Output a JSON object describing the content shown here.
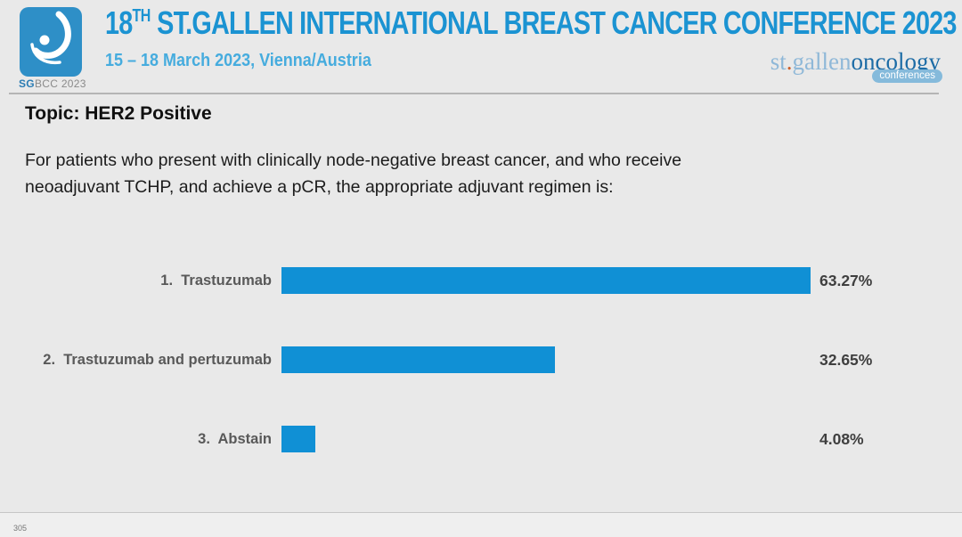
{
  "header": {
    "logo": {
      "caption_strong": "SG",
      "caption_rest": "BCC 2023",
      "square_color": "#2e8fc7"
    },
    "title_number": "18",
    "title_sup": "TH",
    "title_rest": " ST.GALLEN INTERNATIONAL BREAST CANCER CONFERENCE 2023",
    "title_color": "#1b93d2",
    "subtitle": "15 – 18 March 2023, Vienna/Austria",
    "subtitle_color": "#46acde",
    "org_logo": {
      "part_st": "st",
      "part_dot": ".",
      "part_gallen": "gallen",
      "part_oncology": "oncology",
      "part_conferences": "conferences"
    }
  },
  "main": {
    "topic": "Topic: HER2 Positive",
    "question": "For patients who present with clinically node-negative breast cancer, and who receive\nneoadjuvant TCHP, and achieve a pCR, the appropriate adjuvant regimen is:"
  },
  "chart_data": {
    "type": "bar",
    "orientation": "horizontal",
    "title": "",
    "xlabel": "",
    "ylabel": "",
    "xlim": [
      0,
      100
    ],
    "grid": false,
    "legend": "none",
    "bar_color": "#1090d5",
    "categories": [
      "1.  Trastuzumab",
      "2.  Trastuzumab and pertuzumab",
      "3.  Abstain"
    ],
    "values": [
      63.27,
      32.65,
      4.08
    ],
    "value_labels": [
      "63.27%",
      "32.65%",
      "4.08%"
    ],
    "rows": [
      {
        "label": "1.  Trastuzumab",
        "value": 63.27,
        "value_label": "63.27%"
      },
      {
        "label": "2.  Trastuzumab and pertuzumab",
        "value": 32.65,
        "value_label": "32.65%"
      },
      {
        "label": "3.  Abstain",
        "value": 4.08,
        "value_label": "4.08%"
      }
    ]
  },
  "footer": {
    "page_number": "305"
  }
}
